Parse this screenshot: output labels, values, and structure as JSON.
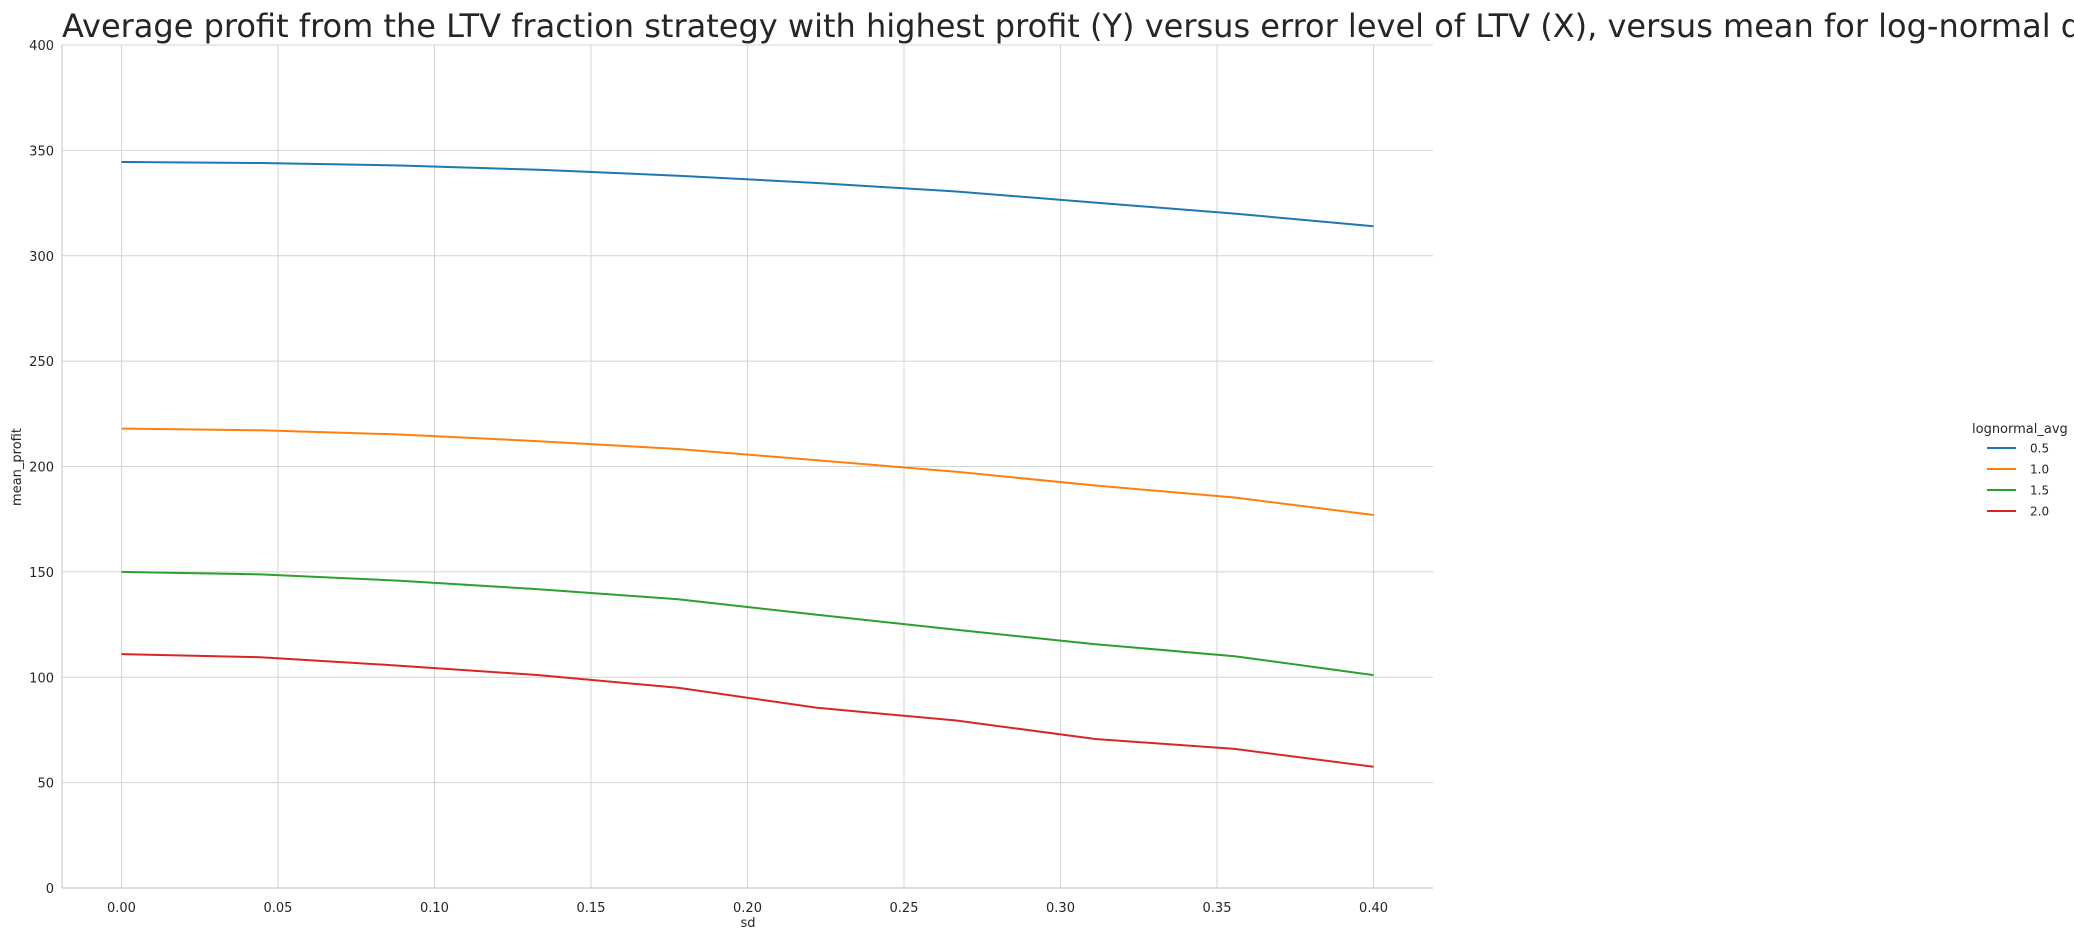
{
  "chart_data": {
    "type": "line",
    "title": "Average profit from the LTV fraction strategy with highest profit (Y) versus error level of LTV (X), versus mean for log-normal distribution",
    "xlabel": "sd",
    "ylabel": "mean_profit",
    "xlim": [
      -0.019,
      0.419
    ],
    "ylim": [
      0,
      400
    ],
    "xticks": [
      0.0,
      0.05,
      0.1,
      0.15,
      0.2,
      0.25,
      0.3,
      0.35,
      0.4
    ],
    "xtick_labels": [
      "0.00",
      "0.05",
      "0.10",
      "0.15",
      "0.20",
      "0.25",
      "0.30",
      "0.35",
      "0.40"
    ],
    "yticks": [
      0,
      50,
      100,
      150,
      200,
      250,
      300,
      350,
      400
    ],
    "ytick_labels": [
      "0",
      "50",
      "100",
      "150",
      "200",
      "250",
      "300",
      "350",
      "400"
    ],
    "grid": true,
    "legend": {
      "title": "lognormal_avg",
      "placement": "center-right"
    },
    "x": [
      0.0,
      0.0444,
      0.0889,
      0.1333,
      0.1778,
      0.2222,
      0.2667,
      0.3111,
      0.3556,
      0.4
    ],
    "series": [
      {
        "name": "0.5",
        "color": "#1f77b4",
        "values": [
          344.5,
          344.0,
          342.8,
          340.8,
          338.0,
          334.5,
          330.5,
          325.2,
          320.0,
          314.0
        ]
      },
      {
        "name": "1.0",
        "color": "#ff7f0e",
        "values": [
          218.0,
          217.2,
          215.2,
          212.0,
          208.3,
          203.0,
          197.5,
          191.0,
          185.3,
          177.0
        ]
      },
      {
        "name": "1.5",
        "color": "#2ca02c",
        "values": [
          150.0,
          148.8,
          145.8,
          141.8,
          137.0,
          129.7,
          122.5,
          115.7,
          110.0,
          101.0
        ]
      },
      {
        "name": "2.0",
        "color": "#d62728",
        "values": [
          111.0,
          109.5,
          105.5,
          101.0,
          95.0,
          85.5,
          79.5,
          70.7,
          66.0,
          57.5
        ]
      }
    ]
  }
}
